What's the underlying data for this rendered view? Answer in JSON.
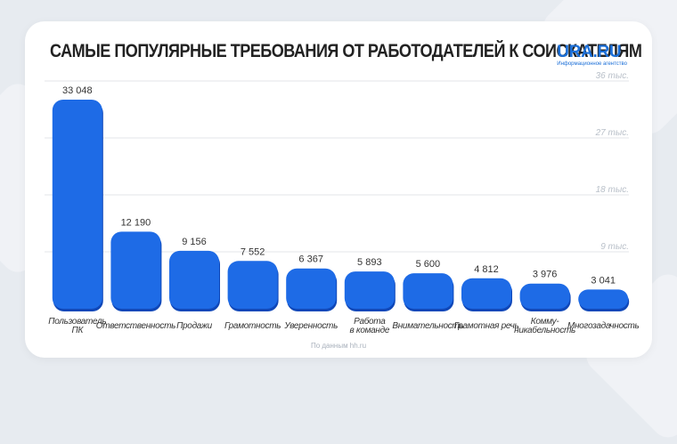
{
  "header": {
    "title": "САМЫЕ ПОПУЛЯРНЫЕ ТРЕБОВАНИЯ ОТ РАБОТОДАТЕЛЕЙ К СОИСКАТЕЛЯМ",
    "logo_text": "URA.RU",
    "logo_sub": "Информационное агентство"
  },
  "footer": {
    "source": "По данным hh.ru"
  },
  "colors": {
    "bar": "#1e6be6",
    "bar_dark": "#0f47b8",
    "grid": "#e3e6ea",
    "tick": "#b9c0c9",
    "text": "#333333"
  },
  "chart_data": {
    "type": "bar",
    "categories": [
      [
        "Пользователь",
        "ПК"
      ],
      [
        "Ответственность"
      ],
      [
        "Продажи"
      ],
      [
        "Грамотность"
      ],
      [
        "Уверенность"
      ],
      [
        "Работа",
        "в команде"
      ],
      [
        "Внимательность"
      ],
      [
        "Грамотная речь"
      ],
      [
        "Комму-",
        "никабельность"
      ],
      [
        "Многозадачность"
      ]
    ],
    "values": [
      33048,
      12190,
      9156,
      7552,
      6367,
      5893,
      5600,
      4812,
      3976,
      3041
    ],
    "value_labels": [
      "33 048",
      "12 190",
      "9 156",
      "7 552",
      "6 367",
      "5 893",
      "5 600",
      "4 812",
      "3 976",
      "3 041"
    ],
    "ylim": [
      0,
      36000
    ],
    "yticks": [
      9000,
      18000,
      27000,
      36000
    ],
    "ytick_labels": [
      "9 тыс.",
      "18 тыс.",
      "27 тыс.",
      "36 тыс."
    ],
    "grid": true
  }
}
